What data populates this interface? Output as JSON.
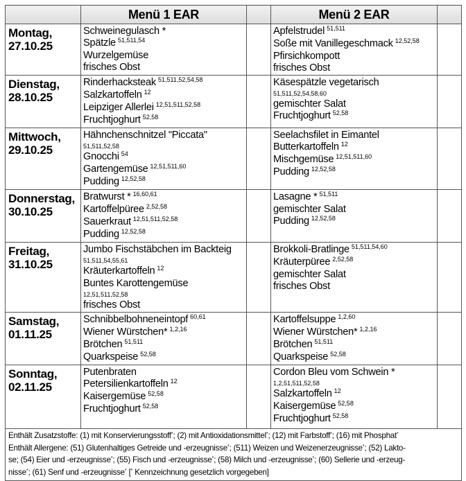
{
  "header": {
    "menu1": "Menü 1 EAR",
    "menu2": "Menü 2 EAR"
  },
  "days": [
    {
      "day": "Montag,",
      "date": "27.10.25",
      "menu1": [
        {
          "name": "Schweinegulasch *",
          "sup": ""
        },
        {
          "name": "Spätzle",
          "sup": "51,511,54"
        },
        {
          "name": "Wurzelgemüse",
          "sup": ""
        },
        {
          "name": "frisches Obst",
          "sup": ""
        }
      ],
      "menu2": [
        {
          "name": "Apfelstrudel",
          "sup": "51,511"
        },
        {
          "name": "Soße mit Vanillegeschmack",
          "sup": "12,52,58"
        },
        {
          "name": "Pfirsichkompott",
          "sup": ""
        },
        {
          "name": "frisches Obst",
          "sup": ""
        }
      ]
    },
    {
      "day": "Dienstag,",
      "date": "28.10.25",
      "menu1": [
        {
          "name": "Rinderhacksteak",
          "sup": "51,511,52,54,58"
        },
        {
          "name": "Salzkartoffeln",
          "sup": "12"
        },
        {
          "name": "Leipziger Allerlei",
          "sup": "12,51,511,52,58"
        },
        {
          "name": "Fruchtjoghurt",
          "sup": "52,58"
        }
      ],
      "menu2": [
        {
          "name": "Käsespätzle vegetarisch",
          "sup": "51,511,52,54,58,60",
          "sup_own_line": true
        },
        {
          "name": "gemischter Salat",
          "sup": ""
        },
        {
          "name": "Fruchtjoghurt",
          "sup": "52,58"
        }
      ]
    },
    {
      "day": "Mittwoch,",
      "date": "29.10.25",
      "menu1": [
        {
          "name": "Hähnchenschnitzel \"Piccata\"",
          "sup": "51,511,52,58",
          "sup_own_line": true
        },
        {
          "name": "Gnocchi",
          "sup": "54"
        },
        {
          "name": "Gartengemüse",
          "sup": "12,51,511,60"
        },
        {
          "name": "Pudding",
          "sup": "12,52,58"
        }
      ],
      "menu2": [
        {
          "name": "Seelachsfilet in Eimantel",
          "sup": ""
        },
        {
          "name": "Butterkartoffeln",
          "sup": "12"
        },
        {
          "name": "Mischgemüse",
          "sup": "12,51,511,60"
        },
        {
          "name": "Pudding",
          "sup": "12,52,58"
        }
      ]
    },
    {
      "day": "Donnerstag,",
      "date": "30.10.25",
      "menu1": [
        {
          "name": "Bratwurst *",
          "sup": "16,60,61"
        },
        {
          "name": "Kartoffelpüree",
          "sup": "2,52,58"
        },
        {
          "name": "Sauerkraut",
          "sup": "12,51,511,52,58"
        },
        {
          "name": "Pudding",
          "sup": "12,52,58"
        }
      ],
      "menu2": [
        {
          "name": "Lasagne *",
          "sup": "51,511"
        },
        {
          "name": "gemischter Salat",
          "sup": ""
        },
        {
          "name": "Pudding",
          "sup": "12,52,58"
        }
      ]
    },
    {
      "day": "Freitag,",
      "date": "31.10.25",
      "menu1": [
        {
          "name": "Jumbo Fischstäbchen im Backteig",
          "sup": "51,511,54,55,61",
          "sup_own_line": true
        },
        {
          "name": "Kräuterkartoffeln",
          "sup": "12"
        },
        {
          "name": "Buntes Karottengemüse",
          "sup": "12,51,511,52,58",
          "sup_own_line": true
        },
        {
          "name": "frisches Obst",
          "sup": ""
        }
      ],
      "menu2": [
        {
          "name": "Brokkoli-Bratlinge",
          "sup": "51,511,54,60"
        },
        {
          "name": "Kräuterpüree",
          "sup": "2,52,58"
        },
        {
          "name": "gemischter Salat",
          "sup": ""
        },
        {
          "name": "frisches Obst",
          "sup": ""
        }
      ]
    },
    {
      "day": "Samstag,",
      "date": "01.11.25",
      "menu1": [
        {
          "name": "Schnibbelbohneneintopf",
          "sup": "60,61"
        },
        {
          "name": "Wiener Würstchen*",
          "sup": "1,2,16"
        },
        {
          "name": "Brötchen",
          "sup": "51,511"
        },
        {
          "name": "Quarkspeise",
          "sup": "52,58"
        }
      ],
      "menu2": [
        {
          "name": "Kartoffelsuppe",
          "sup": "1,2,60"
        },
        {
          "name": "Wiener Würstchen*",
          "sup": "1,2,16"
        },
        {
          "name": "Brötchen",
          "sup": "51,511"
        },
        {
          "name": "Quarkspeise",
          "sup": "52,58"
        }
      ]
    },
    {
      "day": "Sonntag,",
      "date": "02.11.25",
      "menu1": [
        {
          "name": "Putenbraten",
          "sup": ""
        },
        {
          "name": "Petersilienkartoffeln",
          "sup": "12"
        },
        {
          "name": "Kaisergemüse",
          "sup": "52,58"
        },
        {
          "name": "Fruchtjoghurt",
          "sup": "52,58"
        }
      ],
      "menu2": [
        {
          "name": "Cordon Bleu vom Schwein *",
          "sup": "1,2,51,511,52,58",
          "sup_own_line": true
        },
        {
          "name": "Salzkartoffeln",
          "sup": "12"
        },
        {
          "name": "Kaisergemüse",
          "sup": "52,58"
        },
        {
          "name": "Fruchtjoghurt",
          "sup": "52,58"
        }
      ]
    }
  ],
  "footer": {
    "lines": [
      "Enthält Zusatzstoffe: (1) mit Konservierungsstoff*; (2) mit Antioxidationsmittel*; (12) mit Farbstoff*; (16) mit Phosphat*",
      "Enthält Allergene: (51) Glutenhaltiges Getreide und -erzeugnisse*; (511) Weizen und Weizenerzeugnisse*; (52) Lakto-",
      "se; (54) Eier und -erzeugnisse*; (55) Fisch und -erzeugnisse*; (58) Milch und -erzeugnisse*; (60) Sellerie und -erzeug-",
      "nisse*; (61) Senf und -erzeugnisse*   [* Kennzeichnung gesetzlich vorgegeben]"
    ]
  }
}
